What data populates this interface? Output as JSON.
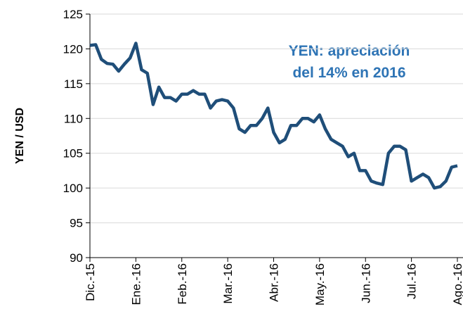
{
  "chart_data": {
    "type": "line",
    "ylabel": "YEN / USD",
    "annotation": [
      "YEN: apreciación",
      "del 14% en 2016"
    ],
    "categories": [
      "Dic.-15",
      null,
      null,
      null,
      null,
      null,
      null,
      null,
      "Ene.-16",
      null,
      null,
      null,
      null,
      null,
      null,
      null,
      "Feb.-16",
      null,
      null,
      null,
      null,
      null,
      null,
      null,
      "Mar.-16",
      null,
      null,
      null,
      null,
      null,
      null,
      null,
      "Abr.-16",
      null,
      null,
      null,
      null,
      null,
      null,
      null,
      "May.-16",
      null,
      null,
      null,
      null,
      null,
      null,
      null,
      "Jun.-16",
      null,
      null,
      null,
      null,
      null,
      null,
      null,
      "Jul.-16",
      null,
      null,
      null,
      null,
      null,
      null,
      null,
      "Ago.-16"
    ],
    "values": [
      120.5,
      120.6,
      118.5,
      117.9,
      117.8,
      116.8,
      117.8,
      118.7,
      120.8,
      117,
      116.5,
      112,
      114.5,
      113,
      113,
      112.5,
      113.5,
      113.5,
      114,
      113.5,
      113.5,
      111.5,
      112.5,
      112.7,
      112.5,
      111.5,
      108.5,
      108,
      109,
      109,
      110,
      111.5,
      108,
      106.5,
      107,
      109,
      109,
      110,
      110,
      109.5,
      110.5,
      108.5,
      107,
      106.5,
      106,
      104.5,
      105,
      102.5,
      102.5,
      101,
      100.7,
      100.5,
      105,
      106,
      106,
      105.5,
      101,
      101.5,
      102,
      101.5,
      100,
      100.2,
      101,
      103,
      103.2
    ],
    "color": "#1f4e79",
    "annotation_color": "#2e74b5",
    "ylim": [
      90,
      125
    ],
    "yticks": [
      90,
      95,
      100,
      105,
      110,
      115,
      120,
      125
    ],
    "grid": true
  }
}
